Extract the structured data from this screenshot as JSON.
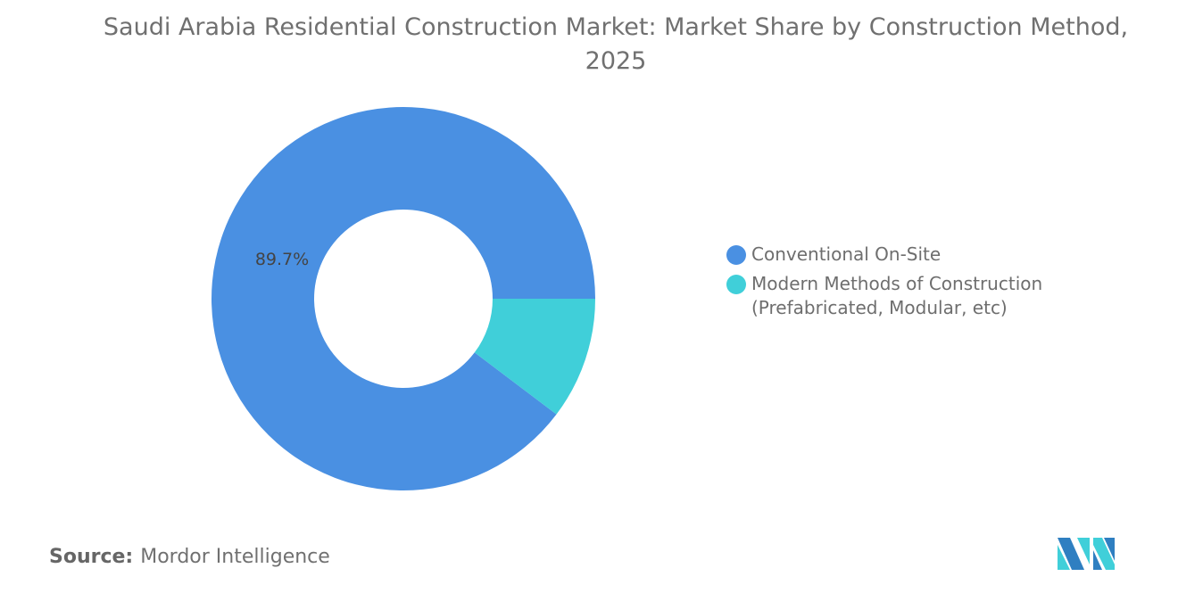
{
  "chart_data": {
    "type": "pie",
    "variant": "donut",
    "title": "Saudi Arabia Residential Construction Market: Market Share by Construction Method, 2025",
    "categories": [
      "Conventional On-Site",
      "Modern Methods of Construction (Prefabricated, Modular, etc)"
    ],
    "values": [
      89.7,
      10.3
    ],
    "unit": "%",
    "colors": [
      "#4A90E2",
      "#40CFD9"
    ],
    "data_labels": [
      "89.7%",
      ""
    ],
    "legend_placement": "right"
  },
  "source": {
    "label": "Source:",
    "value": "Mordor Intelligence"
  },
  "logo": {
    "icon": "mordor-intelligence-logo",
    "colors": [
      "#2F7FC1",
      "#40CFD9"
    ]
  }
}
